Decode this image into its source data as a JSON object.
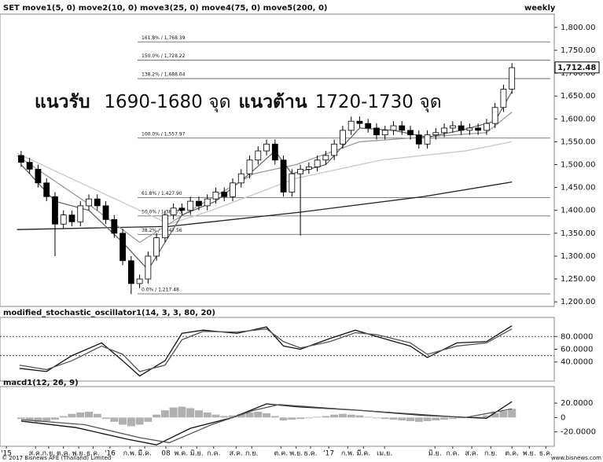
{
  "header": {
    "title": "SET move1(5, 0) move2(10, 0) move3(25, 0) move4(75, 0) move5(200, 0)",
    "timeframe": "weekly",
    "footer_left": "© 2017 Bisnews AFE (Thailand) Limited",
    "footer_right": "www.bisnews.com"
  },
  "annotation": {
    "support_label": "แนวรับ",
    "support_range": "1690-1680 จุด",
    "resistance_label": "แนวต้าน",
    "resistance_range": "1720-1730 จุด"
  },
  "chart_data": [
    {
      "type": "candlestick",
      "up_color": "#ffffff",
      "down_color": "#000000",
      "x": [
        5,
        7,
        9,
        11,
        13,
        15,
        17,
        19,
        21,
        23,
        25,
        27,
        29,
        31,
        33,
        35,
        37,
        39,
        41,
        43,
        45,
        47,
        49,
        51,
        53,
        55,
        57,
        59,
        61,
        63,
        65,
        67,
        69,
        71,
        73,
        75,
        77,
        79,
        81,
        83,
        85,
        87,
        89,
        91,
        93,
        95,
        97,
        99,
        101,
        103,
        105,
        107,
        109,
        111,
        113,
        115,
        117,
        119,
        121
      ],
      "open": [
        1520,
        1505,
        1490,
        1460,
        1430,
        1370,
        1390,
        1375,
        1410,
        1425,
        1410,
        1380,
        1350,
        1290,
        1240,
        1250,
        1300,
        1340,
        1390,
        1405,
        1400,
        1420,
        1410,
        1425,
        1440,
        1430,
        1460,
        1480,
        1510,
        1530,
        1545,
        1510,
        1440,
        1480,
        1490,
        1495,
        1510,
        1520,
        1545,
        1575,
        1595,
        1590,
        1580,
        1565,
        1575,
        1585,
        1575,
        1565,
        1545,
        1565,
        1570,
        1580,
        1585,
        1575,
        1580,
        1575,
        1590,
        1625,
        1665
      ],
      "high": [
        1530,
        1515,
        1500,
        1470,
        1440,
        1400,
        1400,
        1420,
        1435,
        1435,
        1420,
        1390,
        1360,
        1300,
        1260,
        1310,
        1350,
        1400,
        1415,
        1415,
        1430,
        1430,
        1435,
        1450,
        1450,
        1470,
        1490,
        1520,
        1540,
        1555,
        1555,
        1520,
        1490,
        1500,
        1505,
        1520,
        1530,
        1555,
        1585,
        1605,
        1605,
        1600,
        1590,
        1585,
        1595,
        1595,
        1585,
        1575,
        1575,
        1580,
        1590,
        1595,
        1595,
        1590,
        1590,
        1600,
        1635,
        1675,
        1722
      ],
      "low": [
        1495,
        1480,
        1450,
        1420,
        1300,
        1360,
        1365,
        1365,
        1400,
        1400,
        1370,
        1340,
        1280,
        1217,
        1230,
        1240,
        1290,
        1330,
        1380,
        1390,
        1390,
        1400,
        1400,
        1415,
        1420,
        1420,
        1450,
        1470,
        1500,
        1520,
        1500,
        1430,
        1430,
        1345,
        1480,
        1485,
        1500,
        1510,
        1535,
        1565,
        1580,
        1570,
        1555,
        1555,
        1565,
        1565,
        1555,
        1535,
        1535,
        1555,
        1560,
        1570,
        1565,
        1565,
        1565,
        1565,
        1580,
        1615,
        1655
      ],
      "close": [
        1505,
        1490,
        1460,
        1430,
        1370,
        1390,
        1375,
        1410,
        1425,
        1410,
        1380,
        1350,
        1290,
        1240,
        1250,
        1300,
        1340,
        1390,
        1405,
        1400,
        1420,
        1410,
        1425,
        1440,
        1430,
        1460,
        1480,
        1510,
        1530,
        1545,
        1510,
        1440,
        1480,
        1490,
        1495,
        1510,
        1520,
        1545,
        1575,
        1595,
        1590,
        1580,
        1565,
        1575,
        1585,
        1575,
        1565,
        1545,
        1565,
        1570,
        1580,
        1585,
        1575,
        1580,
        1575,
        1590,
        1625,
        1665,
        1712
      ],
      "lines": [
        {
          "color": "#222222",
          "x": [
            4,
            40,
            70,
            100,
            121
          ],
          "values": [
            1358,
            1365,
            1395,
            1430,
            1462
          ]
        },
        {
          "color": "#c8c8c8",
          "x": [
            4,
            40,
            50,
            70,
            90,
            110,
            121
          ],
          "values": [
            1525,
            1370,
            1400,
            1470,
            1510,
            1530,
            1550
          ]
        },
        {
          "color": "#999999",
          "x": [
            4,
            20,
            33,
            45,
            60,
            70,
            85,
            100,
            115,
            121
          ],
          "values": [
            1520,
            1420,
            1330,
            1400,
            1480,
            1500,
            1550,
            1560,
            1570,
            1615
          ]
        },
        {
          "color": "#666666",
          "x": [
            5,
            13,
            21,
            29,
            35,
            43,
            51,
            59,
            65,
            69,
            77,
            85,
            93,
            101,
            109,
            117,
            121
          ],
          "values": [
            1500,
            1420,
            1400,
            1330,
            1270,
            1390,
            1420,
            1480,
            1530,
            1480,
            1500,
            1580,
            1575,
            1560,
            1575,
            1595,
            1660
          ]
        }
      ],
      "levels": [
        {
          "value": 1768.39,
          "label": "161.8% / 1,768.39"
        },
        {
          "value": 1728.22,
          "label": "150.0% / 1,728.22"
        },
        {
          "value": 1688.04,
          "label": "138.2% / 1,688.04"
        },
        {
          "value": 1557.97,
          "label": "100.0% / 1,557.97"
        },
        {
          "value": 1427.9,
          "label": "61.8% / 1,427.90"
        },
        {
          "value": 1387.73,
          "label": "50.0% / 1,387.73"
        },
        {
          "value": 1347.56,
          "label": "38.2% / 1,347.56"
        },
        {
          "value": 1217.48,
          "label": "0.0% / 1,217.48"
        }
      ],
      "last_price": {
        "value": 1712.48,
        "label": "1,712.48"
      },
      "xlim": [
        0,
        131
      ],
      "ylim": [
        1190,
        1829
      ],
      "yticks": [
        {
          "value": 1200,
          "label": "1,200.00"
        },
        {
          "value": 1250,
          "label": "1,250.00"
        },
        {
          "value": 1300,
          "label": "1,300.00"
        },
        {
          "value": 1350,
          "label": "1,350.00"
        },
        {
          "value": 1400,
          "label": "1,400.00"
        },
        {
          "value": 1450,
          "label": "1,450.00"
        },
        {
          "value": 1500,
          "label": "1,500.00"
        },
        {
          "value": 1550,
          "label": "1,550.00"
        },
        {
          "value": 1600,
          "label": "1,600.00"
        },
        {
          "value": 1650,
          "label": "1,650.00"
        },
        {
          "value": 1700,
          "label": "1,700.00"
        },
        {
          "value": 1750,
          "label": "1,750.00"
        },
        {
          "value": 1800,
          "label": "1,800.00"
        }
      ]
    },
    {
      "type": "line",
      "title": "modified_stochastic_oscillator1(14, 3, 3, 80, 20)",
      "xlim": [
        0,
        131
      ],
      "ylim": [
        10,
        110
      ],
      "reference_lines": [
        80,
        50
      ],
      "yticks": [
        {
          "value": 80,
          "label": "80.0000"
        },
        {
          "value": 60,
          "label": "60.0000"
        },
        {
          "value": 40,
          "label": "40.0000"
        }
      ],
      "series": [
        {
          "color": "#111111",
          "x": [
            4.6,
            11,
            17,
            24,
            29,
            33,
            39,
            43,
            48,
            56,
            63,
            67,
            71,
            78,
            84,
            89,
            97,
            101,
            108,
            115,
            121
          ],
          "values": [
            30,
            25,
            50,
            70,
            42,
            18,
            42,
            85,
            90,
            85,
            95,
            65,
            60,
            77,
            90,
            80,
            65,
            47,
            70,
            72,
            97
          ]
        },
        {
          "color": "#555555",
          "x": [
            4.6,
            11,
            17,
            24,
            29,
            33,
            39,
            43,
            48,
            56,
            63,
            67,
            71,
            78,
            84,
            89,
            97,
            101,
            108,
            115,
            121
          ],
          "values": [
            35,
            28,
            42,
            65,
            52,
            25,
            35,
            75,
            88,
            87,
            92,
            72,
            62,
            72,
            86,
            83,
            70,
            52,
            65,
            70,
            92
          ]
        }
      ]
    },
    {
      "type": "macd",
      "title": "macd1(12, 26, 9)",
      "xlim": [
        0,
        131
      ],
      "ylim": [
        -40,
        43
      ],
      "yticks": [
        {
          "value": 20,
          "label": "20.0000"
        },
        0,
        {
          "value": -20,
          "label": "-20.0000"
        }
      ],
      "histogram": {
        "color": "#b0b0b0",
        "x": [
          5,
          7,
          9,
          11,
          13,
          15,
          17,
          19,
          21,
          23,
          25,
          27,
          29,
          31,
          33,
          35,
          37,
          39,
          41,
          43,
          45,
          47,
          49,
          51,
          53,
          55,
          57,
          59,
          61,
          63,
          65,
          67,
          69,
          71,
          73,
          75,
          77,
          79,
          81,
          83,
          85,
          87,
          89,
          91,
          93,
          95,
          97,
          99,
          101,
          103,
          105,
          107,
          109,
          111,
          113,
          115,
          117,
          119,
          121
        ],
        "values": [
          -2,
          -4,
          -6,
          -5,
          -3,
          2,
          5,
          7,
          8,
          5,
          -2,
          -6,
          -10,
          -12,
          -10,
          -6,
          4,
          10,
          14,
          15,
          13,
          10,
          7,
          4,
          2,
          3,
          5,
          7,
          8,
          6,
          2,
          -4,
          -3,
          -2,
          -1,
          1,
          2,
          4,
          5,
          4,
          3,
          1,
          -1,
          -2,
          -3,
          -4,
          -5,
          -6,
          -5,
          -4,
          -3,
          -2,
          -1,
          0,
          1,
          3,
          6,
          9,
          12
        ]
      },
      "series": [
        {
          "color": "#111111",
          "x": [
            5,
            18,
            30,
            37,
            45,
            55,
            63,
            70,
            85,
            100,
            115,
            121
          ],
          "values": [
            -5,
            -14,
            -30,
            -38,
            -15,
            0,
            19,
            15,
            10,
            3,
            -1,
            22
          ]
        },
        {
          "color": "#555555",
          "x": [
            5,
            20,
            33,
            40,
            50,
            60,
            66,
            80,
            95,
            110,
            121
          ],
          "values": [
            -3,
            -10,
            -28,
            -35,
            -10,
            10,
            18,
            12,
            6,
            0,
            12
          ]
        }
      ],
      "xticks": [
        {
          "value": 1.5,
          "label": "'15"
        },
        {
          "value": 8.4,
          "label": "ส.ค."
        },
        {
          "value": 11.5,
          "label": "ก.ย."
        },
        {
          "value": 15,
          "label": "ต.ค."
        },
        {
          "value": 18.6,
          "label": "พ.ย."
        },
        {
          "value": 22,
          "label": "ธ.ค."
        },
        {
          "value": 26,
          "label": "'16"
        },
        {
          "value": 30.7,
          "label": "ก.พ."
        },
        {
          "value": 34.2,
          "label": "มี.ค."
        },
        {
          "value": 39.2,
          "label": "08"
        },
        {
          "value": 42.8,
          "label": "พ.ค."
        },
        {
          "value": 46.5,
          "label": "มิ.ย."
        },
        {
          "value": 50.5,
          "label": "ก.ค."
        },
        {
          "value": 55.8,
          "label": "ส.ค."
        },
        {
          "value": 59.5,
          "label": "ก.ย."
        },
        {
          "value": 66.4,
          "label": "ต.ค."
        },
        {
          "value": 70,
          "label": "พ.ย."
        },
        {
          "value": 73.4,
          "label": "ธ.ค."
        },
        {
          "value": 77.7,
          "label": "'17"
        },
        {
          "value": 82.2,
          "label": "ก.พ."
        },
        {
          "value": 85.9,
          "label": "มี.ค."
        },
        {
          "value": 90.9,
          "label": "เม.ย."
        },
        {
          "value": 102.8,
          "label": "มิ.ย."
        },
        {
          "value": 107,
          "label": "ก.ค."
        },
        {
          "value": 111.5,
          "label": "ส.ค."
        },
        {
          "value": 116,
          "label": "ก.ย."
        },
        {
          "value": 121,
          "label": "ต.ค."
        },
        {
          "value": 125.1,
          "label": "พ.ย."
        },
        {
          "value": 129,
          "label": "ธ.ค."
        }
      ]
    }
  ]
}
